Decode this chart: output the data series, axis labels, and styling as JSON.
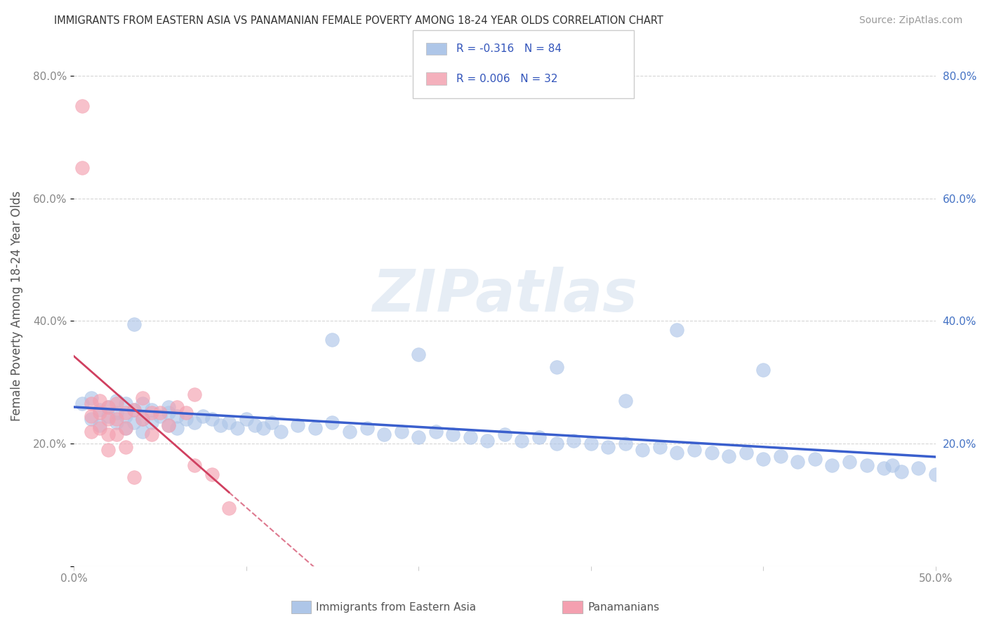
{
  "title": "IMMIGRANTS FROM EASTERN ASIA VS PANAMANIAN FEMALE POVERTY AMONG 18-24 YEAR OLDS CORRELATION CHART",
  "source": "Source: ZipAtlas.com",
  "ylabel": "Female Poverty Among 18-24 Year Olds",
  "xlim": [
    0.0,
    0.5
  ],
  "ylim": [
    0.0,
    0.85
  ],
  "xticks": [
    0.0,
    0.1,
    0.2,
    0.3,
    0.4,
    0.5
  ],
  "xticklabels": [
    "0.0%",
    "",
    "",
    "",
    "",
    "50.0%"
  ],
  "yticks": [
    0.0,
    0.2,
    0.4,
    0.6,
    0.8
  ],
  "yticklabels": [
    "",
    "20.0%",
    "40.0%",
    "60.0%",
    "80.0%"
  ],
  "watermark": "ZIPatlas",
  "legend_entries": [
    {
      "label": "Immigrants from Eastern Asia",
      "color": "#aec6e8",
      "R": "-0.316",
      "N": "84"
    },
    {
      "label": "Panamanians",
      "color": "#f4b0bc",
      "R": "0.006",
      "N": "32"
    }
  ],
  "blue_scatter_x": [
    0.005,
    0.01,
    0.01,
    0.015,
    0.015,
    0.02,
    0.02,
    0.025,
    0.025,
    0.025,
    0.03,
    0.03,
    0.03,
    0.035,
    0.035,
    0.04,
    0.04,
    0.04,
    0.045,
    0.045,
    0.05,
    0.055,
    0.055,
    0.06,
    0.06,
    0.065,
    0.07,
    0.075,
    0.08,
    0.085,
    0.09,
    0.095,
    0.1,
    0.105,
    0.11,
    0.115,
    0.12,
    0.13,
    0.14,
    0.15,
    0.16,
    0.17,
    0.18,
    0.19,
    0.2,
    0.21,
    0.22,
    0.23,
    0.24,
    0.25,
    0.26,
    0.27,
    0.28,
    0.29,
    0.3,
    0.31,
    0.32,
    0.33,
    0.34,
    0.35,
    0.36,
    0.37,
    0.38,
    0.39,
    0.4,
    0.41,
    0.42,
    0.43,
    0.44,
    0.45,
    0.46,
    0.47,
    0.475,
    0.48,
    0.49,
    0.5,
    0.15,
    0.2,
    0.28,
    0.35,
    0.32,
    0.4,
    0.035,
    0.055
  ],
  "blue_scatter_y": [
    0.265,
    0.24,
    0.275,
    0.255,
    0.23,
    0.26,
    0.245,
    0.27,
    0.25,
    0.235,
    0.265,
    0.245,
    0.225,
    0.255,
    0.235,
    0.265,
    0.24,
    0.22,
    0.255,
    0.235,
    0.245,
    0.25,
    0.23,
    0.245,
    0.225,
    0.24,
    0.235,
    0.245,
    0.24,
    0.23,
    0.235,
    0.225,
    0.24,
    0.23,
    0.225,
    0.235,
    0.22,
    0.23,
    0.225,
    0.235,
    0.22,
    0.225,
    0.215,
    0.22,
    0.21,
    0.22,
    0.215,
    0.21,
    0.205,
    0.215,
    0.205,
    0.21,
    0.2,
    0.205,
    0.2,
    0.195,
    0.2,
    0.19,
    0.195,
    0.185,
    0.19,
    0.185,
    0.18,
    0.185,
    0.175,
    0.18,
    0.17,
    0.175,
    0.165,
    0.17,
    0.165,
    0.16,
    0.165,
    0.155,
    0.16,
    0.15,
    0.37,
    0.345,
    0.325,
    0.385,
    0.27,
    0.32,
    0.395,
    0.26
  ],
  "pink_scatter_x": [
    0.005,
    0.005,
    0.01,
    0.01,
    0.01,
    0.015,
    0.015,
    0.015,
    0.02,
    0.02,
    0.02,
    0.02,
    0.025,
    0.025,
    0.025,
    0.03,
    0.03,
    0.03,
    0.035,
    0.035,
    0.04,
    0.04,
    0.045,
    0.045,
    0.05,
    0.055,
    0.06,
    0.065,
    0.07,
    0.07,
    0.08,
    0.09
  ],
  "pink_scatter_y": [
    0.75,
    0.65,
    0.265,
    0.245,
    0.22,
    0.27,
    0.25,
    0.225,
    0.26,
    0.24,
    0.215,
    0.19,
    0.265,
    0.24,
    0.215,
    0.25,
    0.225,
    0.195,
    0.255,
    0.145,
    0.275,
    0.24,
    0.25,
    0.215,
    0.25,
    0.23,
    0.26,
    0.25,
    0.28,
    0.165,
    0.15,
    0.095
  ],
  "blue_line_color": "#3a5fcd",
  "pink_line_color": "#d04060",
  "scatter_blue_color": "#aec6e8",
  "scatter_pink_color": "#f4a0b0",
  "grid_color": "#cccccc",
  "background_color": "#ffffff",
  "title_color": "#333333",
  "source_color": "#999999",
  "axis_label_color": "#555555",
  "tick_label_color": "#888888",
  "right_ytick_color": "#4472c4"
}
